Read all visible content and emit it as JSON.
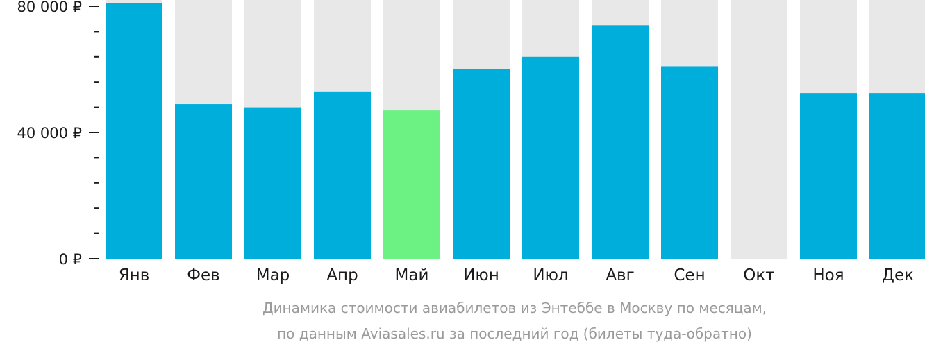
{
  "chart_data": {
    "type": "bar",
    "categories": [
      "Янв",
      "Фев",
      "Мар",
      "Апр",
      "Май",
      "Июн",
      "Июл",
      "Авг",
      "Сен",
      "Окт",
      "Ноя",
      "Дек"
    ],
    "values": [
      81000,
      49000,
      48000,
      53000,
      47000,
      60000,
      64000,
      74000,
      61000,
      null,
      52500,
      52500
    ],
    "highlight_category": "Май",
    "ylim": [
      0,
      80000
    ],
    "yticks": [
      {
        "value": 0,
        "label": "0 ₽"
      },
      {
        "value": 40000,
        "label": "40 000 ₽"
      },
      {
        "value": 80000,
        "label": "80 000 ₽"
      }
    ],
    "minor_tick_step": 8000,
    "grid": false,
    "caption_lines": [
      "Динамика стоимости авиабилетов из Энтеббе в Москву по месяцам,",
      "по данным Aviasales.ru за последний год (билеты туда-обратно)"
    ],
    "colors": {
      "bar": "#00aedb",
      "highlight": "#6cf283",
      "background_bar": "#e8e8e8",
      "axis": "#1a1a1a",
      "caption": "#9a9a9a"
    }
  }
}
